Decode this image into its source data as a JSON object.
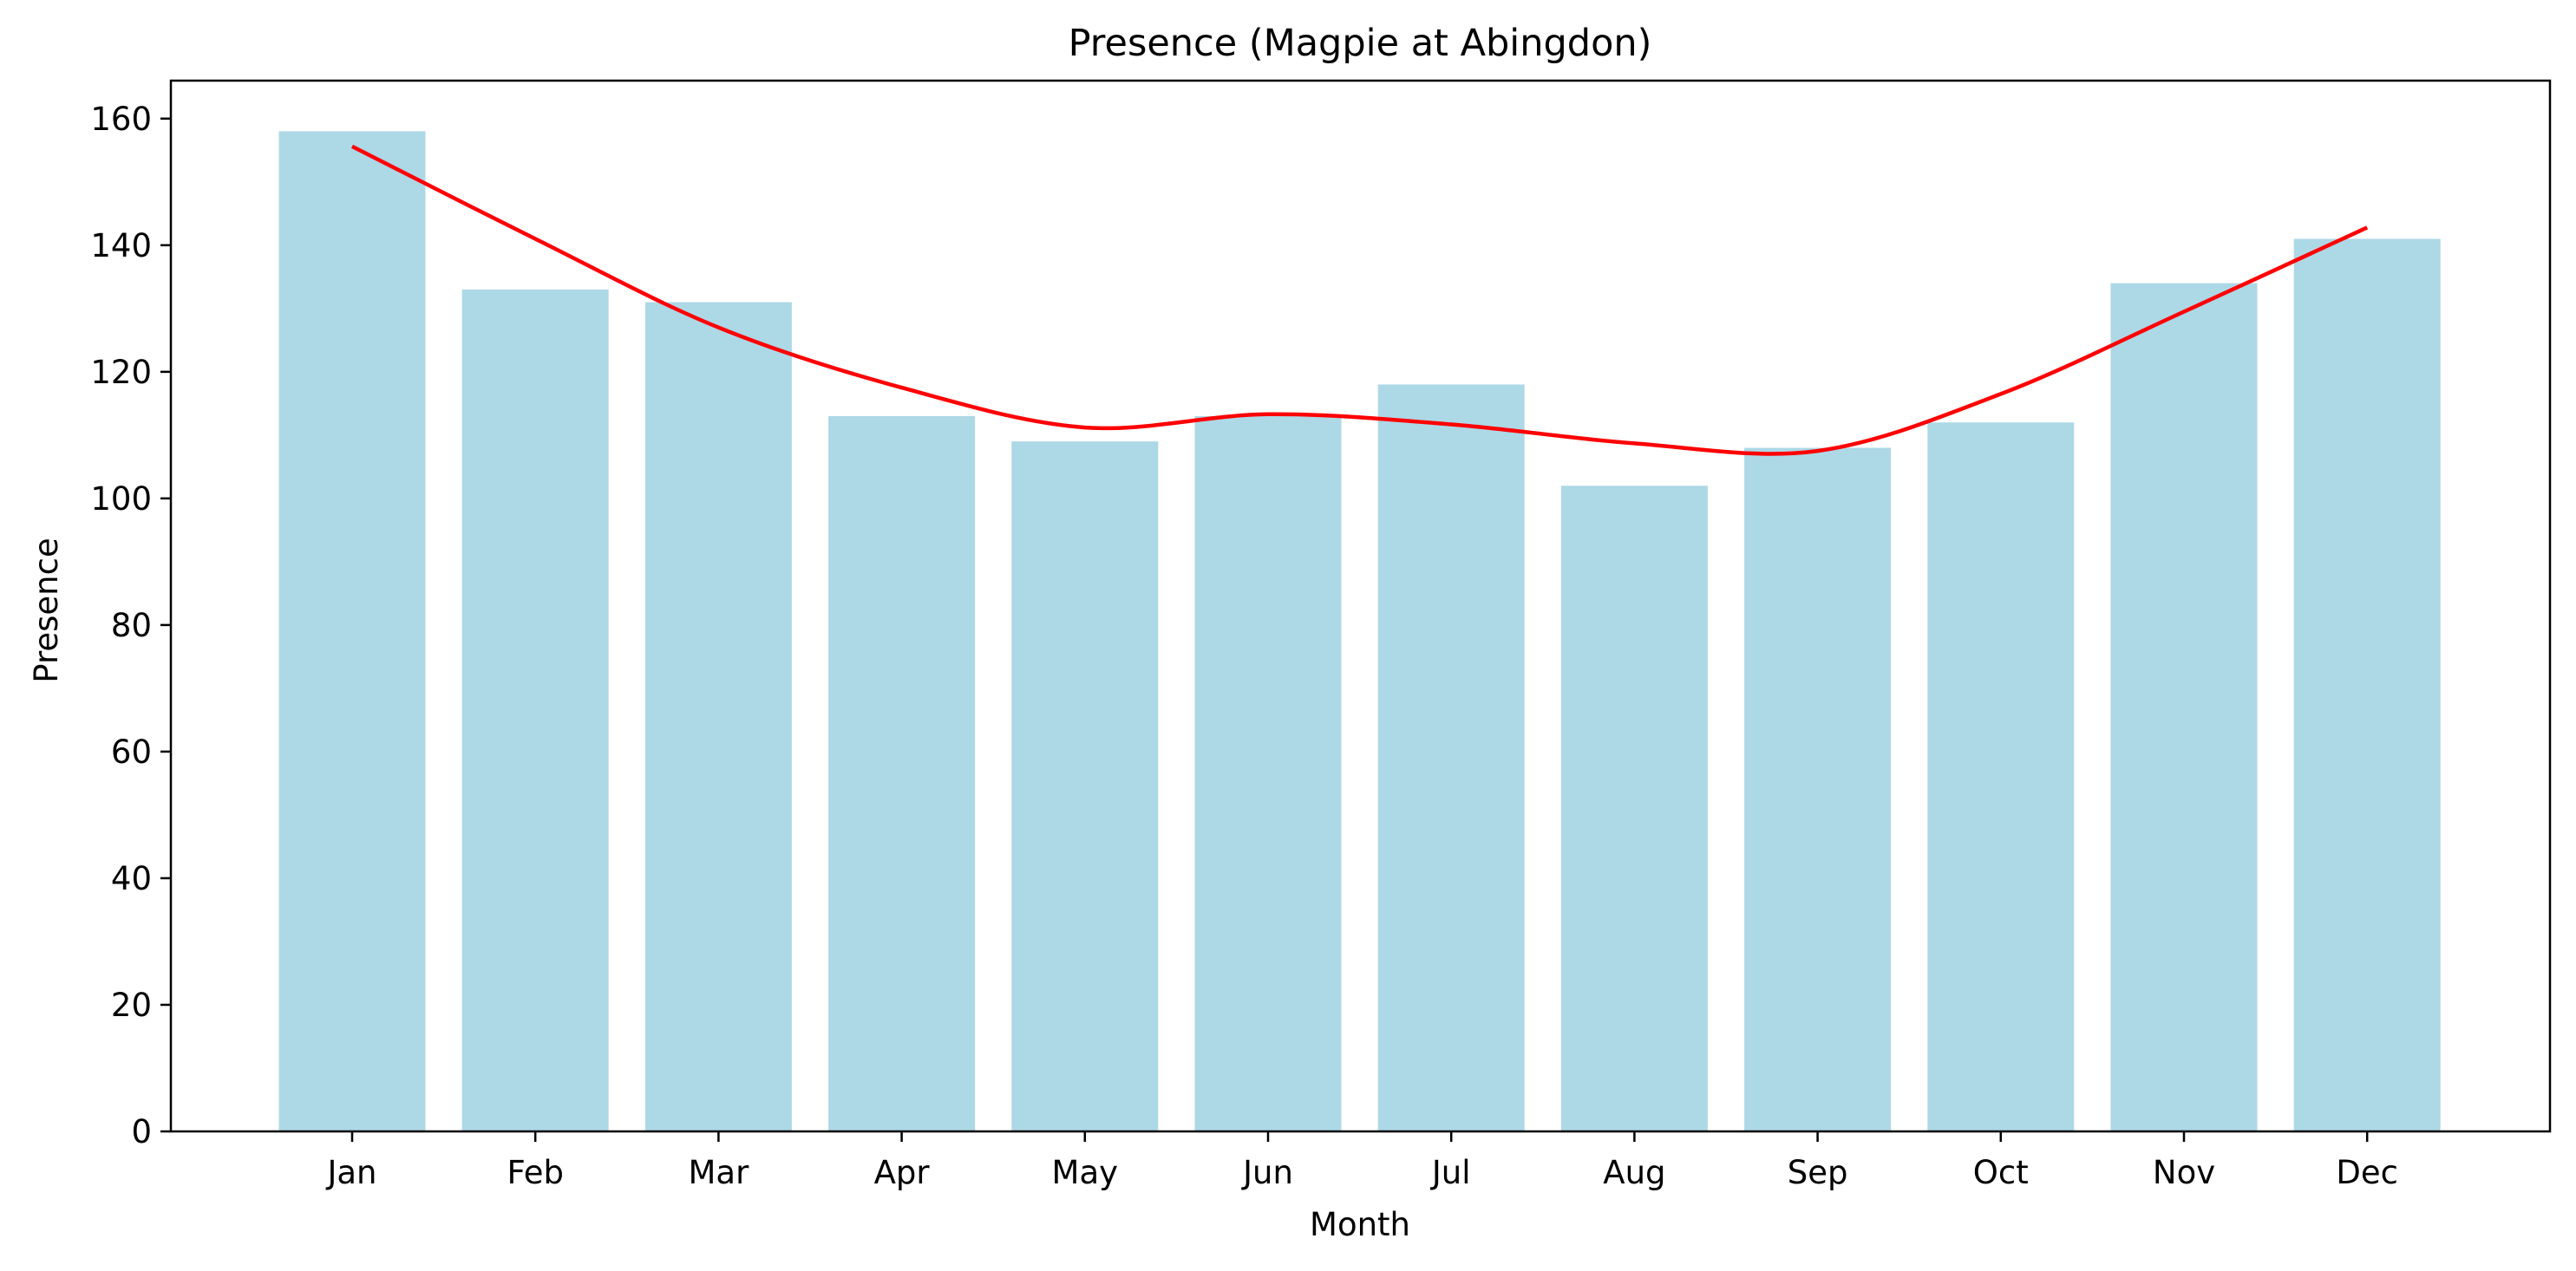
{
  "chart_data": {
    "type": "bar",
    "title": "Presence (Magpie at Abingdon)",
    "xlabel": "Month",
    "ylabel": "Presence",
    "categories": [
      "Jan",
      "Feb",
      "Mar",
      "Apr",
      "May",
      "Jun",
      "Jul",
      "Aug",
      "Sep",
      "Oct",
      "Nov",
      "Dec"
    ],
    "values": [
      158,
      133,
      131,
      113,
      109,
      113,
      118,
      102,
      108,
      112,
      134,
      141
    ],
    "trend_line": [
      155.6,
      141.0,
      127.0,
      117.5,
      111.2,
      113.3,
      111.7,
      108.7,
      107.5,
      116.5,
      129.5,
      142.8
    ],
    "ylim": [
      0,
      166
    ],
    "yticks": [
      0,
      20,
      40,
      60,
      80,
      100,
      120,
      140,
      160
    ],
    "grid": false,
    "colors": {
      "bars": "#add8e6",
      "trend_line": "#ff0000"
    }
  }
}
